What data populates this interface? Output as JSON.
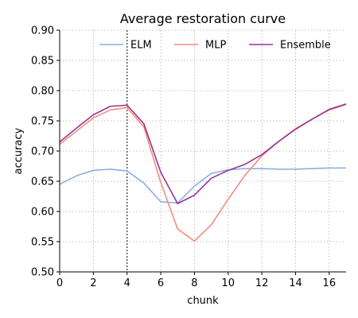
{
  "chart_data": {
    "type": "line",
    "title": "Average restoration curve",
    "xlabel": "chunk",
    "ylabel": "accuracy",
    "xlim": [
      0,
      17
    ],
    "ylim": [
      0.5,
      0.9
    ],
    "xticks": [
      0,
      2,
      4,
      6,
      8,
      10,
      12,
      14,
      16
    ],
    "yticks": [
      0.5,
      0.55,
      0.6,
      0.65,
      0.7,
      0.75,
      0.8,
      0.85,
      0.9
    ],
    "xtick_labels": [
      "0",
      "2",
      "4",
      "6",
      "8",
      "10",
      "12",
      "14",
      "16"
    ],
    "ytick_labels": [
      "0.50",
      "0.55",
      "0.60",
      "0.65",
      "0.70",
      "0.75",
      "0.80",
      "0.85",
      "0.90"
    ],
    "grid": true,
    "legend_position": "top",
    "vline_x": 4,
    "x": [
      0,
      1,
      2,
      3,
      4,
      5,
      6,
      7,
      8,
      9,
      10,
      11,
      12,
      13,
      14,
      15,
      16,
      17
    ],
    "series": [
      {
        "name": "ELM",
        "color": "#8eaee8",
        "values": [
          0.645,
          0.659,
          0.668,
          0.67,
          0.667,
          0.647,
          0.616,
          0.614,
          0.642,
          0.663,
          0.669,
          0.671,
          0.671,
          0.67,
          0.67,
          0.671,
          0.672,
          0.672
        ]
      },
      {
        "name": "MLP",
        "color": "#f48c7c",
        "values": [
          0.711,
          0.733,
          0.755,
          0.768,
          0.772,
          0.74,
          0.648,
          0.571,
          0.551,
          0.578,
          0.62,
          0.66,
          0.692,
          0.716,
          0.737,
          0.753,
          0.768,
          0.777
        ]
      },
      {
        "name": "Ensemble",
        "color": "#96359a",
        "values": [
          0.715,
          0.738,
          0.76,
          0.774,
          0.776,
          0.745,
          0.665,
          0.613,
          0.627,
          0.655,
          0.668,
          0.678,
          0.694,
          0.716,
          0.736,
          0.753,
          0.769,
          0.778
        ]
      }
    ]
  }
}
